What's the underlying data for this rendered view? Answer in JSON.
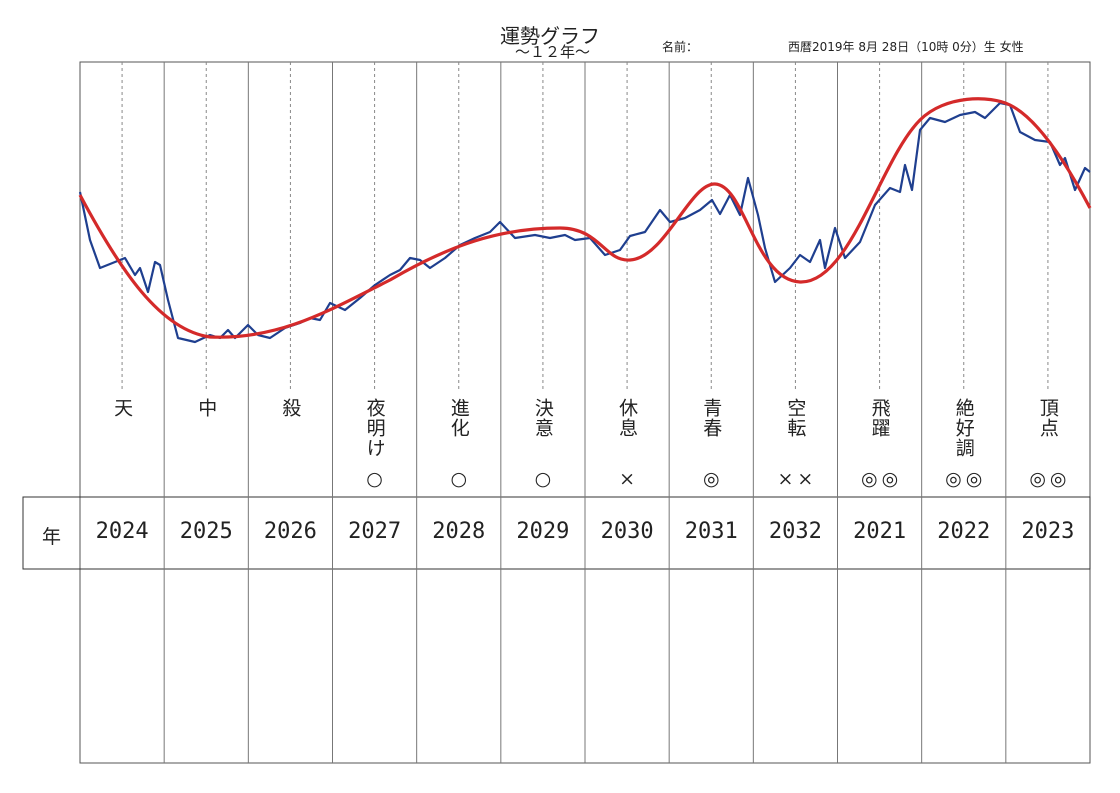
{
  "header": {
    "title": "運勢グラフ",
    "subtitle": "～１２年～",
    "name_label": "名前：",
    "birth": "西暦2019年 8月 28日（10時 0分）生 女性"
  },
  "row_label": "年",
  "columns": [
    {
      "phase": "天",
      "mark": "",
      "year": "2024"
    },
    {
      "phase": "中",
      "mark": "",
      "year": "2025"
    },
    {
      "phase": "殺",
      "mark": "",
      "year": "2026"
    },
    {
      "phase": "夜明け",
      "mark": "○",
      "year": "2027"
    },
    {
      "phase": "進化",
      "mark": "○",
      "year": "2028"
    },
    {
      "phase": "決意",
      "mark": "○",
      "year": "2029"
    },
    {
      "phase": "休息",
      "mark": "×",
      "year": "2030"
    },
    {
      "phase": "青春",
      "mark": "◎",
      "year": "2031"
    },
    {
      "phase": "空転",
      "mark": "××",
      "year": "2032"
    },
    {
      "phase": "飛躍",
      "mark": "◎◎",
      "year": "2021"
    },
    {
      "phase": "絶好調",
      "mark": "◎◎",
      "year": "2022"
    },
    {
      "phase": "頂点",
      "mark": "◎◎",
      "year": "2023"
    }
  ]
}
